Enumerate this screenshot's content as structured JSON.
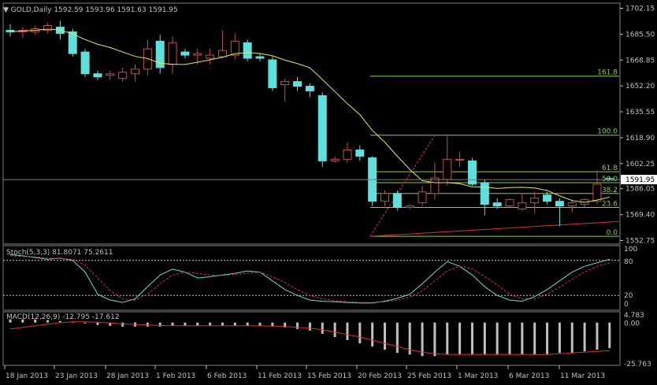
{
  "header": {
    "symbol": "GOLD,Daily",
    "ohlc": "1592.59 1593.96 1591.63 1591.95"
  },
  "stoch_header": "Stoch(5,3,3) 81.8071 75.2611",
  "macd_header": "MACD(12,26,9) -12.795 -17.612",
  "colors": {
    "background": "#000000",
    "bull_candle": "#000000",
    "bull_outline": "#c0504d",
    "bear_candle": "#5fe0dc",
    "ma_line": "#e8e84a",
    "fib_line": "#8fd12e",
    "trend_line": "#e03030",
    "grid_text": "#c0c0c0",
    "stoch_main": "#5fe0dc",
    "stoch_signal": "#e03030",
    "macd_hist": "#c0c0c0",
    "macd_signal": "#e03030"
  },
  "price_axis": {
    "labels": [
      "1702.15",
      "1685.50",
      "1668.85",
      "1652.20",
      "1635.55",
      "1618.90",
      "1602.25",
      "1586.05",
      "1569.40",
      "1552.75"
    ],
    "current": "1591.95"
  },
  "stoch_axis": [
    "100",
    "80",
    "20",
    "0"
  ],
  "macd_axis": [
    "4.783",
    "0.00",
    "-25.763"
  ],
  "time_axis": [
    "18 Jan 2013",
    "23 Jan 2013",
    "28 Jan 2013",
    "1 Feb 2013",
    "6 Feb 2013",
    "11 Feb 2013",
    "15 Feb 2013",
    "20 Feb 2013",
    "25 Feb 2013",
    "1 Mar 2013",
    "6 Mar 2013",
    "11 Mar 2013"
  ],
  "fibo_levels": [
    {
      "label": "161.8",
      "price": 1658.5
    },
    {
      "label": "100.0",
      "price": 1620.5
    },
    {
      "label": "61.8",
      "price": 1597.0
    },
    {
      "label": "50.0",
      "price": 1590.0
    },
    {
      "label": "38.2",
      "price": 1583.0
    },
    {
      "label": "23.6",
      "price": 1574.0
    },
    {
      "label": "0.0",
      "price": 1555.5
    }
  ],
  "chart_data": {
    "type": "candlestick",
    "ylim": [
      1548,
      1705
    ],
    "candles": [
      {
        "o": 1688,
        "h": 1692,
        "l": 1684,
        "c": 1687
      },
      {
        "o": 1687,
        "h": 1690,
        "l": 1683,
        "c": 1688
      },
      {
        "o": 1687,
        "h": 1691,
        "l": 1685,
        "c": 1689
      },
      {
        "o": 1688,
        "h": 1693,
        "l": 1686,
        "c": 1691
      },
      {
        "o": 1690,
        "h": 1694,
        "l": 1682,
        "c": 1686
      },
      {
        "o": 1687,
        "h": 1689,
        "l": 1671,
        "c": 1673
      },
      {
        "o": 1674,
        "h": 1676,
        "l": 1658,
        "c": 1660
      },
      {
        "o": 1660,
        "h": 1662,
        "l": 1656,
        "c": 1658
      },
      {
        "o": 1659,
        "h": 1662,
        "l": 1656,
        "c": 1660
      },
      {
        "o": 1657,
        "h": 1664,
        "l": 1655,
        "c": 1661
      },
      {
        "o": 1660,
        "h": 1666,
        "l": 1655,
        "c": 1663
      },
      {
        "o": 1663,
        "h": 1682,
        "l": 1659,
        "c": 1676
      },
      {
        "o": 1681,
        "h": 1685,
        "l": 1660,
        "c": 1664
      },
      {
        "o": 1666,
        "h": 1684,
        "l": 1660,
        "c": 1680
      },
      {
        "o": 1674,
        "h": 1676,
        "l": 1670,
        "c": 1672
      },
      {
        "o": 1672,
        "h": 1676,
        "l": 1666,
        "c": 1673
      },
      {
        "o": 1670,
        "h": 1676,
        "l": 1666,
        "c": 1672
      },
      {
        "o": 1671,
        "h": 1688,
        "l": 1670,
        "c": 1675
      },
      {
        "o": 1672,
        "h": 1686,
        "l": 1669,
        "c": 1681
      },
      {
        "o": 1680,
        "h": 1682,
        "l": 1668,
        "c": 1670
      },
      {
        "o": 1671,
        "h": 1673,
        "l": 1668,
        "c": 1670
      },
      {
        "o": 1669,
        "h": 1671,
        "l": 1649,
        "c": 1651
      },
      {
        "o": 1653,
        "h": 1657,
        "l": 1642,
        "c": 1655
      },
      {
        "o": 1655,
        "h": 1658,
        "l": 1649,
        "c": 1652
      },
      {
        "o": 1652,
        "h": 1654,
        "l": 1645,
        "c": 1649
      },
      {
        "o": 1646,
        "h": 1648,
        "l": 1600,
        "c": 1604
      },
      {
        "o": 1604,
        "h": 1607,
        "l": 1603,
        "c": 1605
      },
      {
        "o": 1605,
        "h": 1616,
        "l": 1603,
        "c": 1611
      },
      {
        "o": 1611,
        "h": 1614,
        "l": 1604,
        "c": 1607
      },
      {
        "o": 1606,
        "h": 1607,
        "l": 1575,
        "c": 1578
      },
      {
        "o": 1578,
        "h": 1585,
        "l": 1575,
        "c": 1583
      },
      {
        "o": 1583,
        "h": 1585,
        "l": 1572,
        "c": 1574
      },
      {
        "o": 1574,
        "h": 1576,
        "l": 1573,
        "c": 1575
      },
      {
        "o": 1577,
        "h": 1588,
        "l": 1575,
        "c": 1584
      },
      {
        "o": 1583,
        "h": 1603,
        "l": 1579,
        "c": 1593
      },
      {
        "o": 1592,
        "h": 1620,
        "l": 1588,
        "c": 1605
      },
      {
        "o": 1605,
        "h": 1610,
        "l": 1600,
        "c": 1605
      },
      {
        "o": 1604,
        "h": 1606,
        "l": 1588,
        "c": 1589
      },
      {
        "o": 1590,
        "h": 1592,
        "l": 1569,
        "c": 1576
      },
      {
        "o": 1577,
        "h": 1580,
        "l": 1573,
        "c": 1575
      },
      {
        "o": 1575,
        "h": 1580,
        "l": 1574,
        "c": 1579
      },
      {
        "o": 1573,
        "h": 1583,
        "l": 1572,
        "c": 1577
      },
      {
        "o": 1577,
        "h": 1584,
        "l": 1570,
        "c": 1580
      },
      {
        "o": 1582,
        "h": 1584,
        "l": 1576,
        "c": 1578
      },
      {
        "o": 1578,
        "h": 1580,
        "l": 1562,
        "c": 1575
      },
      {
        "o": 1575,
        "h": 1579,
        "l": 1571,
        "c": 1577
      },
      {
        "o": 1576,
        "h": 1580,
        "l": 1574,
        "c": 1579
      },
      {
        "o": 1578,
        "h": 1598,
        "l": 1576,
        "c": 1589
      },
      {
        "o": 1592.59,
        "h": 1593.96,
        "l": 1591.63,
        "c": 1591.95
      }
    ]
  }
}
